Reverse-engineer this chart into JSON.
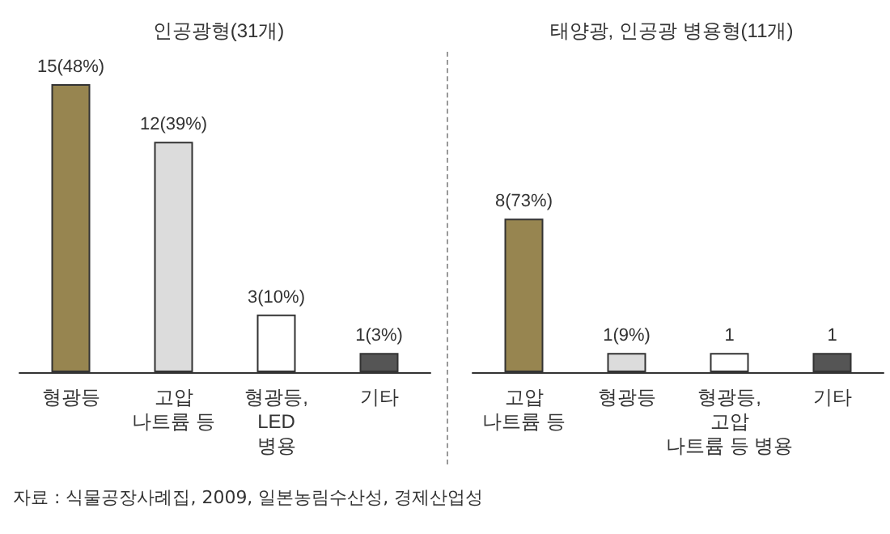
{
  "chart_data": [
    {
      "type": "bar",
      "title": "인공광형(31개)",
      "categories": [
        "형광등",
        "고압\n나트륨 등",
        "형광등,\nLED\n병용",
        "기타"
      ],
      "values": [
        15,
        12,
        3,
        1
      ],
      "colors": [
        "#978550",
        "#dcdcdc",
        "#ffffff",
        "#555555"
      ],
      "value_labels": [
        "15(48%)",
        "12(39%)",
        "3(10%)",
        "1(3%)"
      ],
      "annotations": [
        "자료 : 식물공장사례집, 2009, 일본농림수산성, 경제산업성"
      ]
    },
    {
      "type": "bar",
      "title": "태양광, 인공광 병용형(11개)",
      "categories": [
        "고압\n나트륨 등",
        "형광등",
        "형광등,\n고압\n나트륨 등 병용",
        "기타"
      ],
      "values": [
        8,
        1,
        1,
        1
      ],
      "colors": [
        "#978550",
        "#dcdcdc",
        "#ffffff",
        "#555555"
      ],
      "value_labels": [
        "8(73%)",
        "1(9%)",
        "1",
        "1"
      ]
    }
  ]
}
